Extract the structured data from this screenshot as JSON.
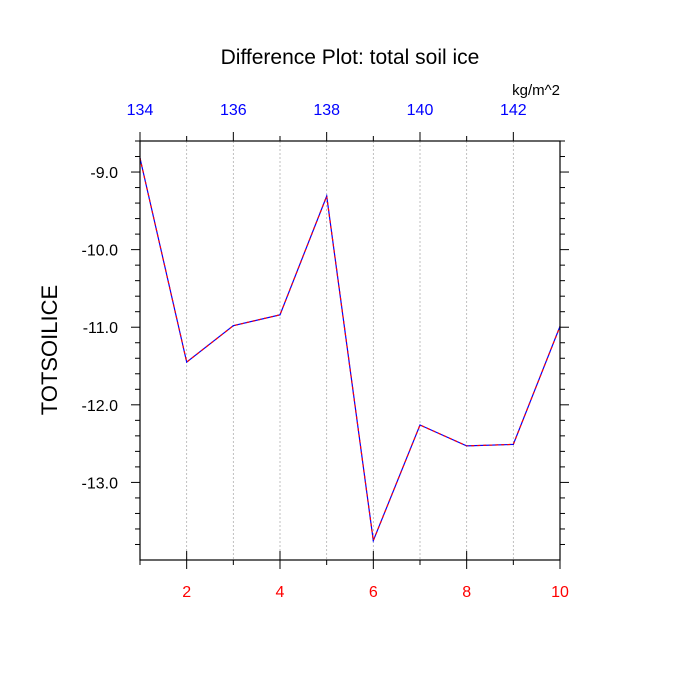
{
  "chart_data": {
    "type": "line",
    "title": "Difference Plot: total soil ice",
    "units": "kg/m^2",
    "ylabel": "TOTSOILICE",
    "xlim": [
      1,
      10
    ],
    "ylim": [
      -14.0,
      -8.6
    ],
    "x_ticks": [
      2,
      4,
      6,
      8,
      10
    ],
    "x_minor_ticks": [
      1,
      3,
      5,
      7,
      9
    ],
    "x_tick_color": "#ff0000",
    "top_axis": {
      "range": [
        134,
        143
      ],
      "ticks": [
        134,
        136,
        138,
        140,
        142
      ],
      "tick_color": "#0000ff"
    },
    "y_ticks": [
      -9.0,
      -10.0,
      -11.0,
      -12.0,
      -13.0
    ],
    "y_tick_labels": [
      "-9.0",
      "-10.0",
      "-11.0",
      "-12.0",
      "-13.0"
    ],
    "y_minor_step": 0.2,
    "grid": "vertical-dashed",
    "series": [
      {
        "x": [
          1,
          2,
          3,
          4,
          5,
          6,
          7,
          8,
          9,
          10
        ],
        "values": [
          -8.82,
          -11.45,
          -10.98,
          -10.84,
          -9.31,
          -13.75,
          -12.26,
          -12.53,
          -12.51,
          -10.99
        ],
        "color": "#0000ff",
        "dash_color": "#ff0000"
      }
    ]
  }
}
